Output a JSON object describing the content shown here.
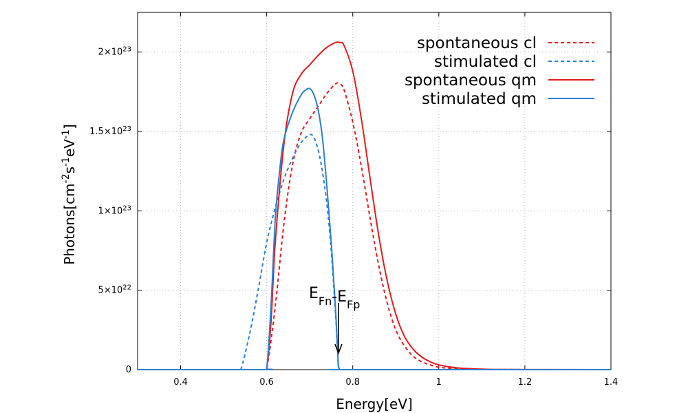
{
  "chart_data": {
    "type": "line",
    "xlabel": "Energy[eV]",
    "ylabel": {
      "base": "Photons[cm",
      "p1": "-2",
      "mid1": "s",
      "p2": "-1",
      "mid2": "eV",
      "p3": "-1",
      "end": "]"
    },
    "xlim": [
      0.3,
      1.4
    ],
    "ylim": [
      0,
      2.25e+23
    ],
    "grid": true,
    "legend_position": "top-right",
    "x_ticks": [
      {
        "value": 0.4,
        "label": "0.4"
      },
      {
        "value": 0.6,
        "label": "0.6"
      },
      {
        "value": 0.8,
        "label": "0.8"
      },
      {
        "value": 1.0,
        "label": "1"
      },
      {
        "value": 1.2,
        "label": "1.2"
      },
      {
        "value": 1.4,
        "label": "1.4"
      }
    ],
    "y_ticks": [
      {
        "value": 0,
        "label": "0",
        "base": "0",
        "exp": ""
      },
      {
        "value": 5e+22,
        "label": "5×10^22",
        "base": "5×10",
        "exp": "22"
      },
      {
        "value": 1e+23,
        "label": "1×10^23",
        "base": "1×10",
        "exp": "23"
      },
      {
        "value": 1.5e+23,
        "label": "1.5×10^23",
        "base": "1.5×10",
        "exp": "23"
      },
      {
        "value": 2e+23,
        "label": "2×10^23",
        "base": "2×10",
        "exp": "23"
      }
    ],
    "series": [
      {
        "name": "spontaneous cl",
        "color": "#e41a1c",
        "style": "dashed",
        "x": [
          0.3,
          0.59,
          0.6,
          0.62,
          0.64,
          0.66,
          0.68,
          0.7,
          0.72,
          0.74,
          0.76,
          0.77,
          0.78,
          0.8,
          0.82,
          0.84,
          0.86,
          0.88,
          0.9,
          0.92,
          0.94,
          0.96,
          0.98,
          1.0,
          1.04,
          1.1,
          1.4
        ],
        "y": [
          0,
          0,
          5e+20,
          4e+22,
          9.2e+22,
          1.29e+23,
          1.49e+23,
          1.58e+23,
          1.66e+23,
          1.74e+23,
          1.8e+23,
          1.8e+23,
          1.76e+23,
          1.56e+23,
          1.28e+23,
          9.6e+22,
          6.6e+22,
          4.2e+22,
          2.5e+22,
          1.5e+22,
          8.5e+21,
          5e+21,
          3e+21,
          1.5e+21,
          6e+20,
          1e+20,
          0
        ]
      },
      {
        "name": "stimulated cl",
        "color": "#2a7fd4",
        "style": "dashed",
        "x": [
          0.3,
          0.53,
          0.54,
          0.56,
          0.58,
          0.6,
          0.62,
          0.64,
          0.66,
          0.68,
          0.7,
          0.71,
          0.72,
          0.73,
          0.74,
          0.75,
          0.76,
          0.765,
          0.77,
          0.8,
          1.4
        ],
        "y": [
          0,
          0,
          2e+20,
          2.2e+22,
          5e+22,
          8e+22,
          1.02e+23,
          1.2e+23,
          1.33e+23,
          1.43e+23,
          1.48e+23,
          1.46e+23,
          1.38e+23,
          1.24e+23,
          1.04e+23,
          7.5e+22,
          3.5e+22,
          1e+22,
          0,
          0,
          0
        ]
      },
      {
        "name": "spontaneous qm",
        "color": "#e41a1c",
        "style": "solid",
        "x": [
          0.3,
          0.59,
          0.6,
          0.61,
          0.62,
          0.64,
          0.66,
          0.68,
          0.7,
          0.72,
          0.74,
          0.76,
          0.77,
          0.78,
          0.8,
          0.82,
          0.84,
          0.86,
          0.88,
          0.9,
          0.92,
          0.94,
          0.96,
          0.98,
          1.0,
          1.04,
          1.1,
          1.16,
          1.4
        ],
        "y": [
          0,
          0,
          5e+20,
          3e+22,
          8e+22,
          1.42e+23,
          1.74e+23,
          1.86e+23,
          1.92e+23,
          1.98e+23,
          2.03e+23,
          2.06e+23,
          2.06e+23,
          2.04e+23,
          1.88e+23,
          1.58e+23,
          1.21e+23,
          8.5e+22,
          5.6e+22,
          3.5e+22,
          2.1e+22,
          1.3e+22,
          8e+21,
          5e+21,
          3e+21,
          1.2e+21,
          3e+20,
          1e+20,
          0
        ]
      },
      {
        "name": "stimulated qm",
        "color": "#2a7fd4",
        "style": "solid",
        "x": [
          0.3,
          0.59,
          0.6,
          0.61,
          0.62,
          0.63,
          0.64,
          0.66,
          0.68,
          0.69,
          0.7,
          0.71,
          0.72,
          0.73,
          0.74,
          0.75,
          0.76,
          0.765,
          0.77,
          0.8,
          1.4
        ],
        "y": [
          0,
          0,
          5e+20,
          4e+22,
          9.5e+22,
          1.25e+23,
          1.45e+23,
          1.62e+23,
          1.73e+23,
          1.76e+23,
          1.77e+23,
          1.73e+23,
          1.63e+23,
          1.45e+23,
          1.15e+23,
          8e+22,
          3.8e+22,
          1.2e+22,
          0,
          0,
          0
        ]
      }
    ],
    "annotation": {
      "text_base_1": "E",
      "text_sub_1": "Fn",
      "text_mid": "-E",
      "text_sub_2": "Fp",
      "x": 0.77,
      "y": 0
    }
  }
}
